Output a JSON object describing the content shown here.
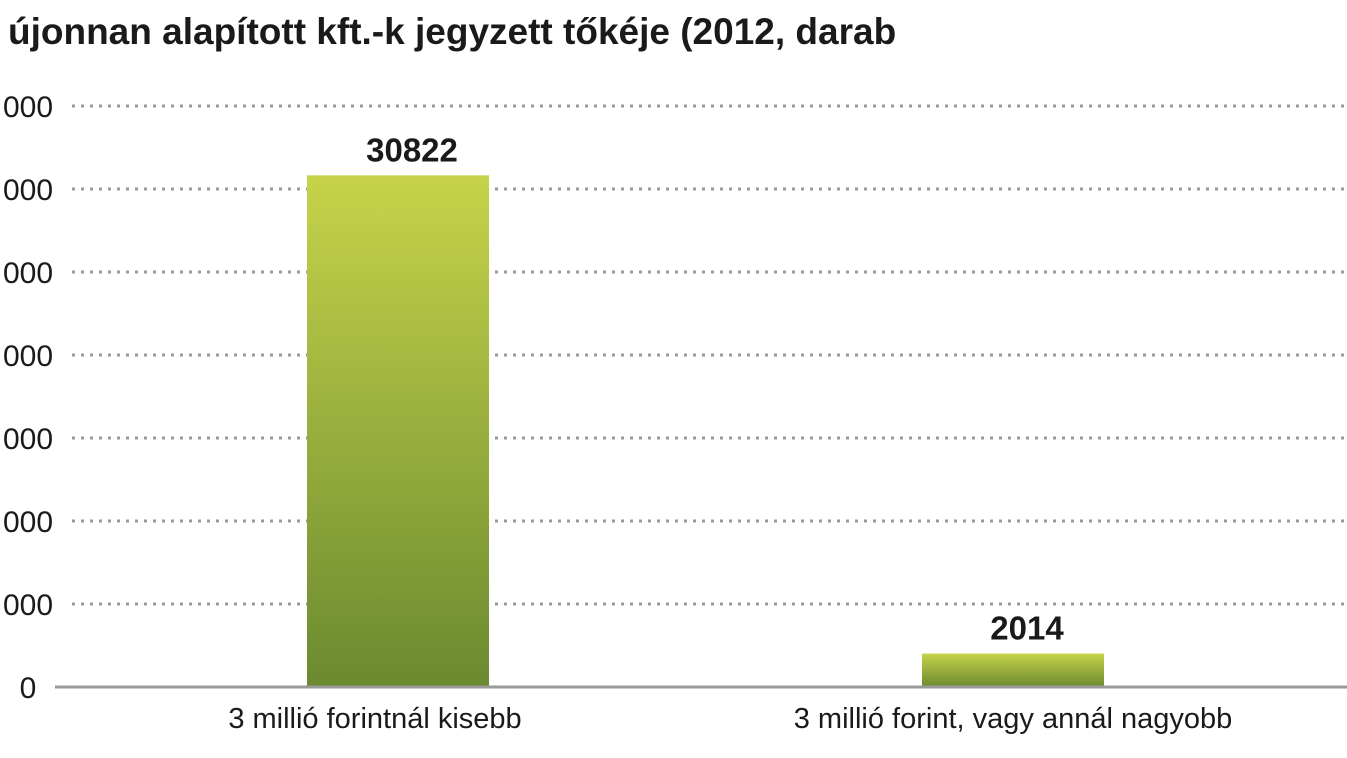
{
  "chart_data": {
    "type": "bar",
    "title": "újonnan alapított kft.-k jegyzett tőkéje (2012, darab",
    "xlabel": "",
    "ylabel": "",
    "categories": [
      "3 millió forintnál kisebb",
      "3 millió forint, vagy annál nagyobb"
    ],
    "values": [
      30822,
      2014
    ],
    "value_labels": [
      "30822",
      "2014"
    ],
    "ylim": [
      0,
      35000
    ],
    "yticks": [
      0,
      5000,
      10000,
      15000,
      20000,
      25000,
      30000,
      35000
    ],
    "ytick_labels": [
      "0",
      "000",
      "000",
      "000",
      "000",
      "000",
      "000",
      "000"
    ],
    "grid": true,
    "legend": "none",
    "colors": {
      "bar_top": "#c6d34a",
      "bar_bottom": "#6b8a30",
      "grid": "#9a9a9a",
      "axis": "#9a9a9a",
      "text": "#1a1a1a"
    }
  }
}
